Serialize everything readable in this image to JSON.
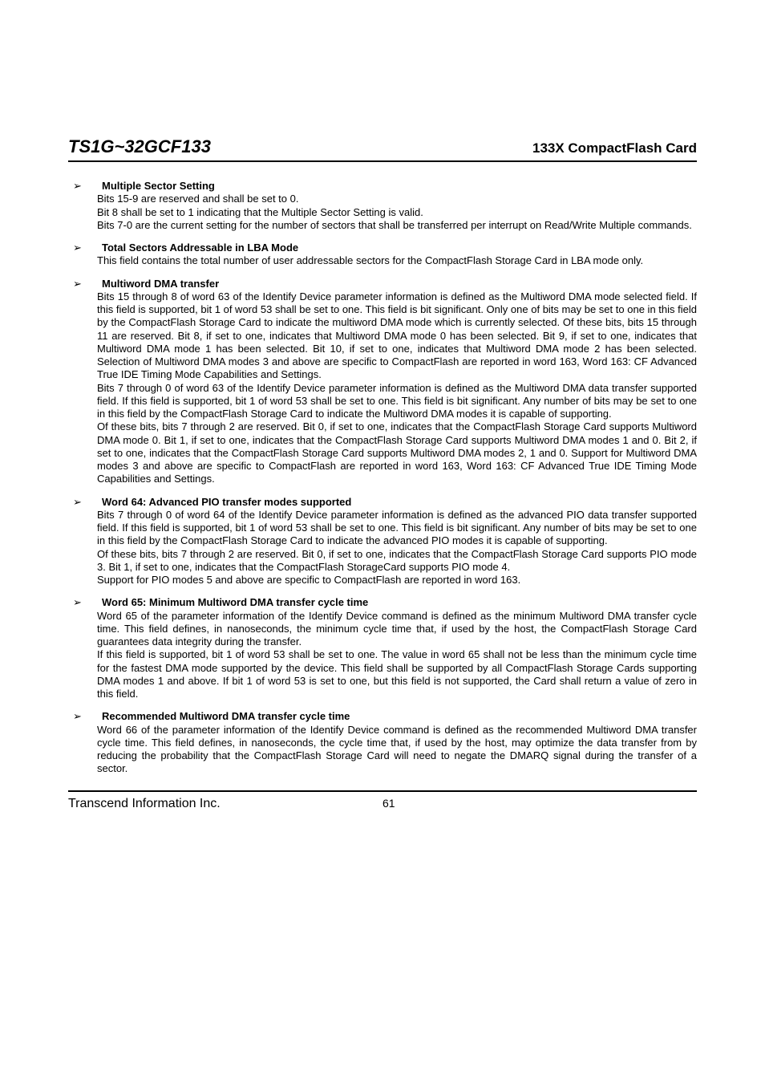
{
  "header": {
    "product": "TS1G~32GCF133",
    "card": "133X CompactFlash Card"
  },
  "sections": [
    {
      "title": "Multiple Sector Setting",
      "paras": [
        "Bits 15-9 are reserved and shall be set to 0.",
        "Bit 8 shall be set to 1 indicating that the Multiple Sector Setting is valid.",
        "Bits 7-0 are the current setting for the number of sectors that shall be transferred per interrupt on Read/Write Multiple commands."
      ]
    },
    {
      "title": "Total Sectors Addressable in LBA Mode",
      "paras": [
        "This field contains the total number of user addressable sectors for the CompactFlash Storage Card in LBA mode only."
      ]
    },
    {
      "title": "Multiword DMA transfer",
      "paras": [
        "Bits 15 through 8 of word 63 of the Identify Device parameter information is defined as the Multiword DMA mode selected field. If this field is supported, bit 1 of word 53 shall be set to one. This field is bit significant. Only one of bits may be set to one in this field by the CompactFlash Storage Card to indicate the multiword DMA mode which is currently selected. Of these bits, bits 15 through 11 are reserved. Bit 8, if set to one, indicates that Multiword DMA mode 0 has been selected. Bit 9, if set to one, indicates that Multiword DMA mode 1 has been selected. Bit 10, if set to one, indicates that Multiword DMA mode 2 has been selected. Selection of Multiword DMA modes 3 and above are specific to CompactFlash are reported in word 163, Word 163: CF Advanced True IDE Timing Mode Capabilities and Settings.",
        "Bits 7 through 0 of word 63 of the Identify Device parameter information is defined as the Multiword DMA data transfer supported field. If this field is supported, bit 1 of word 53 shall be set to one. This field is bit significant. Any number of bits may be set to one in this field by the CompactFlash Storage Card to indicate the Multiword DMA modes it is capable of supporting.",
        "Of these bits, bits 7 through 2 are reserved. Bit 0, if set to one, indicates that the CompactFlash Storage Card supports Multiword DMA mode 0. Bit 1, if set to one, indicates that the CompactFlash Storage Card supports Multiword DMA modes 1 and 0. Bit 2, if set to one, indicates that the CompactFlash Storage Card supports Multiword DMA modes 2, 1 and 0. Support for Multiword DMA modes 3 and above are specific to CompactFlash are reported in word 163, Word 163: CF Advanced True IDE Timing Mode Capabilities and Settings."
      ]
    },
    {
      "title": "Word 64: Advanced PIO transfer modes supported",
      "paras": [
        "Bits 7 through 0 of word 64 of the Identify Device parameter information is defined as the advanced PIO data transfer supported field. If this field is supported, bit 1 of word 53 shall be set to one. This field is bit significant. Any number of bits may be set to one in this field by the CompactFlash Storage Card to indicate the advanced PIO modes it is capable of supporting.",
        "Of these bits, bits 7 through 2 are reserved. Bit 0, if set to one, indicates that the CompactFlash Storage Card supports PIO mode 3. Bit 1, if set to one, indicates that the CompactFlash StorageCard supports PIO mode 4.",
        "Support for PIO modes 5 and above are specific to CompactFlash are reported in word 163."
      ]
    },
    {
      "title": "Word 65: Minimum Multiword DMA transfer cycle time",
      "paras": [
        "Word 65 of the parameter information of the Identify Device command is defined as the minimum Multiword DMA transfer cycle time. This field defines, in nanoseconds, the minimum cycle time that, if used by the host, the CompactFlash Storage Card guarantees data integrity during the transfer.",
        "If this field is supported, bit 1 of word 53 shall be set to one. The value in word 65 shall not be less than the minimum cycle time for the fastest DMA mode supported by the device. This field shall be supported by all CompactFlash Storage Cards supporting DMA modes 1 and above. If bit 1 of word 53 is set to one, but this field is not supported, the Card shall return a value of zero in this field."
      ]
    },
    {
      "title": "Recommended Multiword DMA transfer cycle time",
      "paras": [
        "Word 66 of the parameter information of the Identify Device command is defined as the recommended Multiword DMA transfer cycle time. This field defines, in nanoseconds, the cycle time that, if used by the host, may optimize the data transfer from by reducing the probability that the CompactFlash Storage Card will need to negate the DMARQ signal during the transfer of a sector."
      ]
    }
  ],
  "footer": {
    "company": "Transcend Information Inc.",
    "page": "61"
  },
  "style": {
    "bullet_glyph": "➢",
    "text_color": "#000000",
    "background": "#ffffff",
    "title_fontsize": 22,
    "body_fontsize": 13
  }
}
